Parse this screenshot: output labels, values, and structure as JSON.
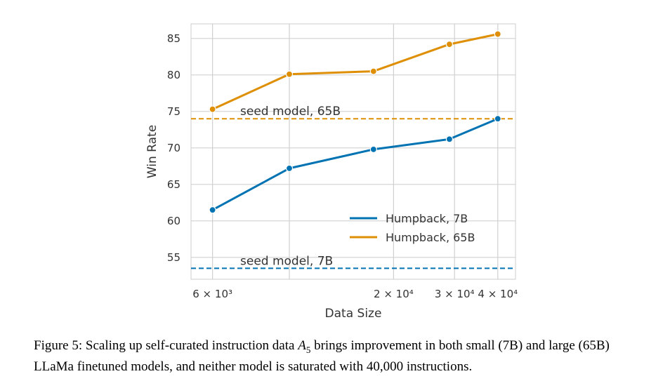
{
  "chart_data": {
    "type": "line",
    "x_scale": "log",
    "xlabel": "Data Size",
    "ylabel": "Win Rate",
    "xlim": [
      5200,
      45000
    ],
    "ylim": [
      52,
      87
    ],
    "grid": true,
    "legend_position": "lower-right",
    "x_ticks": [
      {
        "value": 6000,
        "label": "6 × 10³"
      },
      {
        "value": 20000,
        "label": "2 × 10⁴"
      },
      {
        "value": 30000,
        "label": "3 × 10⁴"
      },
      {
        "value": 40000,
        "label": "4 × 10⁴"
      }
    ],
    "x_minor_gridlines": [
      10000
    ],
    "y_ticks": [
      55,
      60,
      65,
      70,
      75,
      80,
      85
    ],
    "series": [
      {
        "name": "Humpback, 7B",
        "color": "#0173b2",
        "x": [
          6000,
          10000,
          17500,
          29000,
          40000
        ],
        "y": [
          61.5,
          67.2,
          69.8,
          71.2,
          74.0
        ]
      },
      {
        "name": "Humpback, 65B",
        "color": "#de8f05",
        "x": [
          6000,
          10000,
          17500,
          29000,
          40000
        ],
        "y": [
          75.3,
          80.1,
          80.5,
          84.2,
          85.6
        ]
      }
    ],
    "reference_lines": [
      {
        "label": "seed model, 65B",
        "y": 74.0,
        "color": "#de8f05"
      },
      {
        "label": "seed model, 7B",
        "y": 53.5,
        "color": "#0173b2"
      }
    ]
  },
  "caption": {
    "prefix": "Figure 5: Scaling up self-curated instruction data",
    "symbol": "A",
    "subscript": "5",
    "suffix": "brings improvement in both small (7B) and large (65B) LLaMa finetuned models, and neither model is saturated with 40,000 instructions."
  }
}
